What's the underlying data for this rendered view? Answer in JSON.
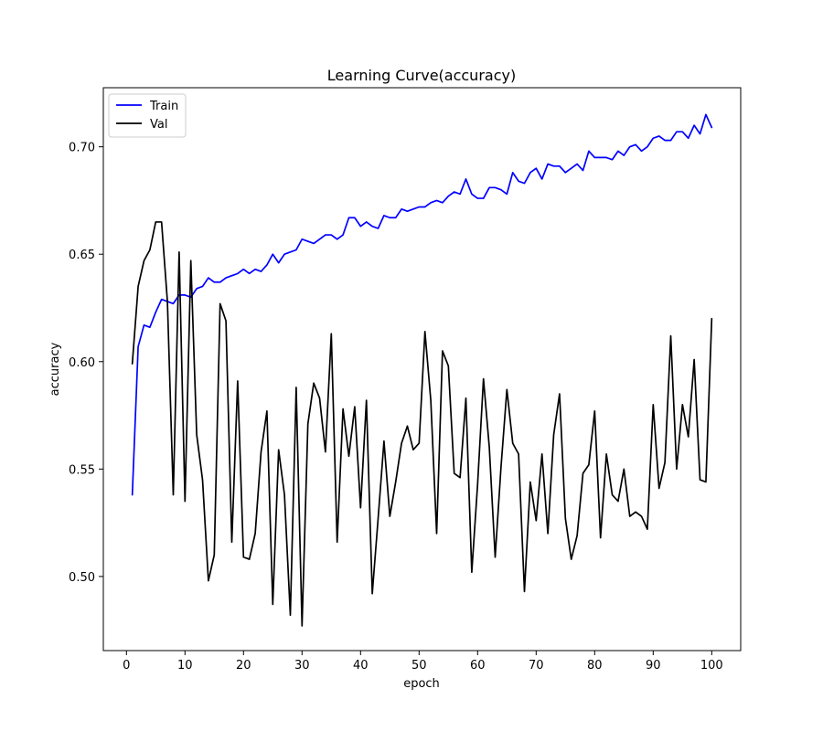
{
  "chart_data": {
    "type": "line",
    "title": "Learning Curve(accuracy)",
    "xlabel": "epoch",
    "ylabel": "accuracy",
    "xlim": [
      -3.95,
      104.95
    ],
    "ylim": [
      0.4655,
      0.7275
    ],
    "xticks": [
      0,
      10,
      20,
      30,
      40,
      50,
      60,
      70,
      80,
      90,
      100
    ],
    "yticks": [
      0.5,
      0.55,
      0.6,
      0.65,
      0.7
    ],
    "ytick_labels": [
      "0.50",
      "0.55",
      "0.60",
      "0.65",
      "0.70"
    ],
    "grid": false,
    "legend_position": "top-left",
    "x": [
      1,
      2,
      3,
      4,
      5,
      6,
      7,
      8,
      9,
      10,
      11,
      12,
      13,
      14,
      15,
      16,
      17,
      18,
      19,
      20,
      21,
      22,
      23,
      24,
      25,
      26,
      27,
      28,
      29,
      30,
      31,
      32,
      33,
      34,
      35,
      36,
      37,
      38,
      39,
      40,
      41,
      42,
      43,
      44,
      45,
      46,
      47,
      48,
      49,
      50,
      51,
      52,
      53,
      54,
      55,
      56,
      57,
      58,
      59,
      60,
      61,
      62,
      63,
      64,
      65,
      66,
      67,
      68,
      69,
      70,
      71,
      72,
      73,
      74,
      75,
      76,
      77,
      78,
      79,
      80,
      81,
      82,
      83,
      84,
      85,
      86,
      87,
      88,
      89,
      90,
      91,
      92,
      93,
      94,
      95,
      96,
      97,
      98,
      99,
      100
    ],
    "series": [
      {
        "name": "Train",
        "color": "#0000ff",
        "values": [
          0.538,
          0.607,
          0.617,
          0.616,
          0.623,
          0.629,
          0.628,
          0.627,
          0.631,
          0.631,
          0.63,
          0.634,
          0.635,
          0.639,
          0.637,
          0.637,
          0.639,
          0.64,
          0.641,
          0.643,
          0.641,
          0.643,
          0.642,
          0.645,
          0.65,
          0.646,
          0.65,
          0.651,
          0.652,
          0.657,
          0.656,
          0.655,
          0.657,
          0.659,
          0.659,
          0.657,
          0.659,
          0.667,
          0.667,
          0.663,
          0.665,
          0.663,
          0.662,
          0.668,
          0.667,
          0.667,
          0.671,
          0.67,
          0.671,
          0.672,
          0.672,
          0.674,
          0.675,
          0.674,
          0.677,
          0.679,
          0.678,
          0.685,
          0.678,
          0.676,
          0.676,
          0.681,
          0.681,
          0.68,
          0.678,
          0.688,
          0.684,
          0.683,
          0.688,
          0.69,
          0.685,
          0.692,
          0.691,
          0.691,
          0.688,
          0.69,
          0.692,
          0.689,
          0.698,
          0.695,
          0.695,
          0.695,
          0.694,
          0.698,
          0.696,
          0.7,
          0.701,
          0.698,
          0.7,
          0.704,
          0.705,
          0.703,
          0.703,
          0.707,
          0.707,
          0.704,
          0.71,
          0.706,
          0.715,
          0.709
        ]
      },
      {
        "name": "Val",
        "color": "#000000",
        "values": [
          0.599,
          0.635,
          0.647,
          0.652,
          0.665,
          0.665,
          0.628,
          0.538,
          0.651,
          0.535,
          0.647,
          0.566,
          0.545,
          0.498,
          0.51,
          0.627,
          0.619,
          0.516,
          0.591,
          0.509,
          0.508,
          0.52,
          0.558,
          0.577,
          0.487,
          0.559,
          0.538,
          0.482,
          0.588,
          0.477,
          0.571,
          0.59,
          0.583,
          0.558,
          0.613,
          0.516,
          0.578,
          0.556,
          0.579,
          0.532,
          0.582,
          0.492,
          0.527,
          0.563,
          0.528,
          0.544,
          0.562,
          0.57,
          0.559,
          0.562,
          0.614,
          0.582,
          0.52,
          0.605,
          0.598,
          0.548,
          0.546,
          0.583,
          0.502,
          0.543,
          0.592,
          0.56,
          0.509,
          0.551,
          0.587,
          0.562,
          0.557,
          0.493,
          0.544,
          0.526,
          0.557,
          0.52,
          0.566,
          0.585,
          0.527,
          0.508,
          0.519,
          0.548,
          0.552,
          0.577,
          0.518,
          0.557,
          0.538,
          0.535,
          0.55,
          0.528,
          0.53,
          0.528,
          0.522,
          0.58,
          0.541,
          0.553,
          0.612,
          0.55,
          0.58,
          0.565,
          0.601,
          0.545,
          0.544,
          0.62
        ]
      }
    ]
  }
}
